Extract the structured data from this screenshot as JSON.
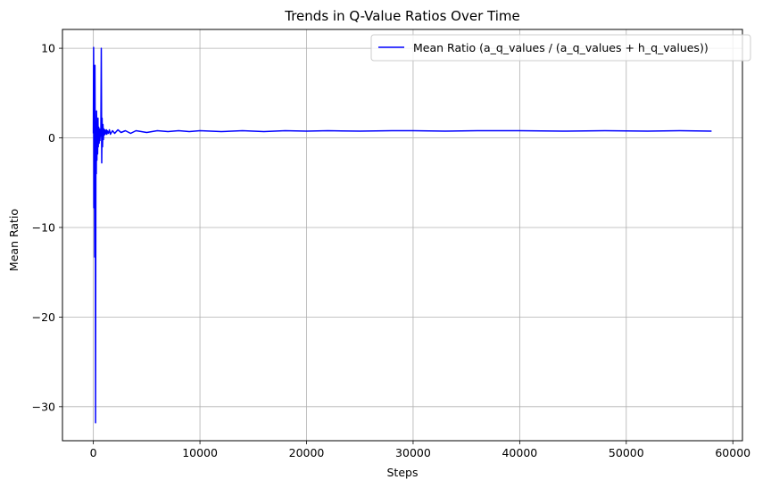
{
  "chart_data": {
    "type": "line",
    "title": "Trends in Q-Value Ratios Over Time",
    "xlabel": "Steps",
    "ylabel": "Mean Ratio",
    "xlim": [
      -2900,
      60900
    ],
    "ylim": [
      -33.8,
      12.1
    ],
    "xticks": [
      0,
      10000,
      20000,
      30000,
      40000,
      50000,
      60000
    ],
    "xtick_labels": [
      "0",
      "10000",
      "20000",
      "30000",
      "40000",
      "50000",
      "60000"
    ],
    "yticks": [
      -30,
      -20,
      -10,
      0,
      10
    ],
    "ytick_labels": [
      "−30",
      "−20",
      "−10",
      "0",
      "10"
    ],
    "grid": true,
    "legend_position": "top-right",
    "colors": {
      "line": "#0000ff",
      "grid": "#b0b0b0",
      "axes": "#000000"
    },
    "series": [
      {
        "name": "Mean Ratio (a_q_values / (a_q_values + h_q_values))",
        "x": [
          0,
          20,
          50,
          90,
          120,
          150,
          180,
          210,
          240,
          270,
          300,
          330,
          360,
          400,
          430,
          460,
          500,
          540,
          580,
          620,
          660,
          700,
          740,
          780,
          820,
          860,
          900,
          940,
          980,
          1020,
          1060,
          1100,
          1140,
          1180,
          1220,
          1260,
          1300,
          1400,
          1500,
          1600,
          1800,
          2000,
          2300,
          2600,
          3000,
          3500,
          4000,
          5000,
          6000,
          7000,
          8000,
          9000,
          10000,
          12000,
          14000,
          16000,
          18000,
          20000,
          22000,
          25000,
          28000,
          30000,
          33000,
          36000,
          40000,
          44000,
          48000,
          52000,
          55000,
          58000
        ],
        "y": [
          0.5,
          10.1,
          -7.8,
          2.5,
          -13.3,
          8.1,
          -3.5,
          -31.8,
          1.8,
          -4.0,
          3.0,
          -2.5,
          1.5,
          -1.8,
          2.2,
          -1.0,
          1.2,
          -0.6,
          1.0,
          -0.3,
          0.9,
          0.2,
          10.0,
          -2.8,
          2.2,
          -1.0,
          1.5,
          -0.2,
          1.0,
          0.3,
          0.9,
          0.4,
          0.8,
          0.5,
          0.9,
          0.4,
          0.8,
          0.5,
          0.9,
          0.4,
          0.8,
          0.5,
          0.9,
          0.6,
          0.8,
          0.5,
          0.8,
          0.6,
          0.8,
          0.7,
          0.8,
          0.7,
          0.8,
          0.7,
          0.8,
          0.7,
          0.8,
          0.75,
          0.8,
          0.75,
          0.8,
          0.8,
          0.75,
          0.8,
          0.8,
          0.75,
          0.8,
          0.75,
          0.8,
          0.75
        ]
      }
    ]
  }
}
